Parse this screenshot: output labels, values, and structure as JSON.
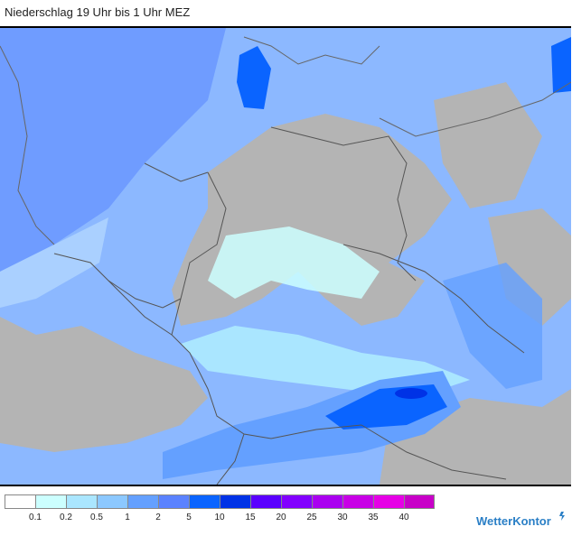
{
  "title": "Niederschlag 19 Uhr bis 1 Uhr MEZ",
  "legend": {
    "colors": [
      "#ffffff",
      "#ccffff",
      "#aae6ff",
      "#8cc8ff",
      "#64a0ff",
      "#5a82ff",
      "#0a64ff",
      "#0032e6",
      "#5a00ff",
      "#8200ff",
      "#aa00f0",
      "#c800e6",
      "#e600e6",
      "#c800c8"
    ],
    "labels": [
      "0.1",
      "0.2",
      "0.5",
      "1",
      "2",
      "5",
      "10",
      "15",
      "20",
      "25",
      "30",
      "35",
      "40"
    ]
  },
  "brand": "WetterKontor",
  "colors": {
    "land": "#b4b4b4",
    "border": "#555555",
    "background_precip": "#8fb6ff"
  }
}
